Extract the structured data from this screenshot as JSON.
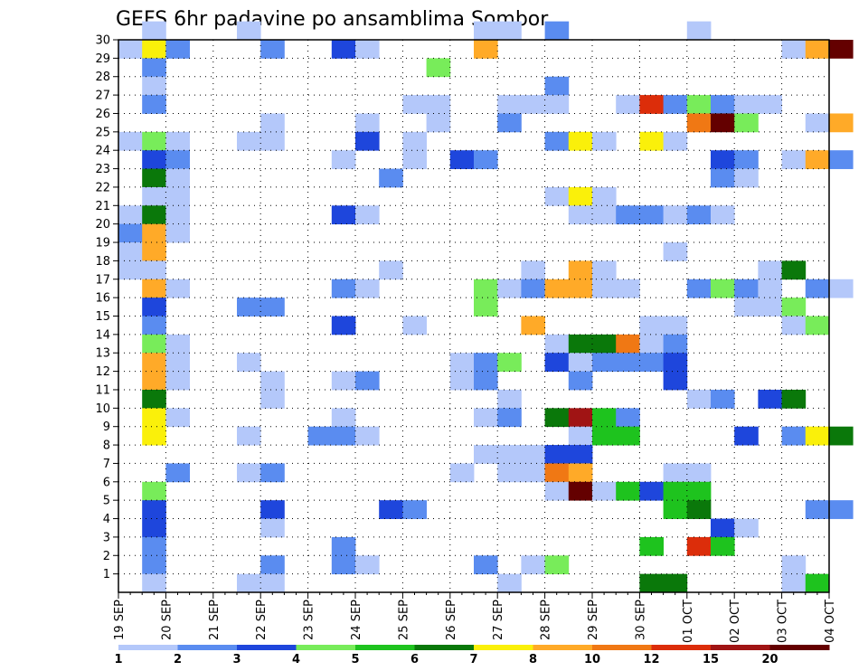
{
  "chart_data": {
    "type": "heatmap",
    "title": "GEFS 6hr padavine po ansamblima Sombor",
    "xlabel": "",
    "ylabel": "",
    "x_tick_labels": [
      "19 SEP",
      "20 SEP",
      "21 SEP",
      "22 SEP",
      "23 SEP",
      "24 SEP",
      "25 SEP",
      "26 SEP",
      "27 SEP",
      "28 SEP",
      "29 SEP",
      "30 SEP",
      "01 OCT",
      "02 OCT",
      "03 OCT",
      "04 OCT"
    ],
    "xlim": [
      0,
      60
    ],
    "x_unit": "6-hour step",
    "y_tick_labels": [
      "1",
      "2",
      "3",
      "4",
      "5",
      "6",
      "7",
      "8",
      "9",
      "10",
      "11",
      "12",
      "13",
      "14",
      "15",
      "16",
      "17",
      "18",
      "19",
      "20",
      "21",
      "22",
      "23",
      "24",
      "25",
      "26",
      "27",
      "28",
      "29",
      "30"
    ],
    "ylim": [
      0,
      30
    ],
    "grid": true,
    "colorbar": {
      "labels": [
        "1",
        "2",
        "3",
        "4",
        "5",
        "6",
        "7",
        "8",
        "10",
        "12",
        "15",
        "20"
      ],
      "colors": [
        "#b4c8fa",
        "#5a8cf0",
        "#1e46dc",
        "#78ec5a",
        "#1ec31e",
        "#0a780a",
        "#faf00a",
        "#ffaa28",
        "#f07814",
        "#dc2d0a",
        "#a01414",
        "#640000"
      ]
    },
    "cells": [
      [
        1,
        30,
        1
      ],
      [
        5,
        30,
        1
      ],
      [
        15,
        30,
        1
      ],
      [
        16,
        30,
        1
      ],
      [
        18,
        30,
        2
      ],
      [
        24,
        30,
        1
      ],
      [
        0,
        29,
        1
      ],
      [
        1,
        29,
        7
      ],
      [
        2,
        29,
        2
      ],
      [
        6,
        29,
        2
      ],
      [
        9,
        29,
        3
      ],
      [
        10,
        29,
        1
      ],
      [
        15,
        29,
        8
      ],
      [
        28,
        29,
        1
      ],
      [
        29,
        29,
        8
      ],
      [
        30,
        29,
        12
      ],
      [
        1,
        28,
        2
      ],
      [
        13,
        28,
        4
      ],
      [
        1,
        27,
        1
      ],
      [
        18,
        27,
        2
      ],
      [
        1,
        26,
        2
      ],
      [
        13,
        26,
        1
      ],
      [
        16,
        26,
        1
      ],
      [
        17,
        26,
        1
      ],
      [
        18,
        26,
        1
      ],
      [
        21,
        26,
        1
      ],
      [
        22,
        26,
        10
      ],
      [
        23,
        26,
        2
      ],
      [
        24,
        26,
        4
      ],
      [
        25,
        26,
        2
      ],
      [
        27,
        26,
        1
      ],
      [
        26,
        26,
        1
      ],
      [
        12,
        26,
        1
      ],
      [
        6,
        25,
        1
      ],
      [
        10,
        25,
        1
      ],
      [
        13,
        25,
        1
      ],
      [
        16,
        25,
        2
      ],
      [
        24,
        25,
        9
      ],
      [
        25,
        25,
        12
      ],
      [
        26,
        25,
        4
      ],
      [
        29,
        25,
        1
      ],
      [
        30,
        25,
        8
      ],
      [
        0,
        24,
        1
      ],
      [
        1,
        24,
        4
      ],
      [
        2,
        24,
        1
      ],
      [
        5,
        24,
        1
      ],
      [
        6,
        24,
        1
      ],
      [
        10,
        24,
        3
      ],
      [
        12,
        24,
        1
      ],
      [
        18,
        24,
        2
      ],
      [
        19,
        24,
        7
      ],
      [
        20,
        24,
        1
      ],
      [
        22,
        24,
        7
      ],
      [
        23,
        24,
        1
      ],
      [
        1,
        23,
        3
      ],
      [
        2,
        23,
        2
      ],
      [
        9,
        23,
        1
      ],
      [
        12,
        23,
        1
      ],
      [
        14,
        23,
        3
      ],
      [
        15,
        23,
        2
      ],
      [
        25,
        23,
        3
      ],
      [
        26,
        23,
        2
      ],
      [
        28,
        23,
        1
      ],
      [
        29,
        23,
        8
      ],
      [
        30,
        23,
        2
      ],
      [
        1,
        22,
        6
      ],
      [
        2,
        22,
        1
      ],
      [
        11,
        22,
        2
      ],
      [
        25,
        22,
        2
      ],
      [
        26,
        22,
        1
      ],
      [
        1,
        21,
        1
      ],
      [
        2,
        21,
        1
      ],
      [
        18,
        21,
        1
      ],
      [
        19,
        21,
        7
      ],
      [
        20,
        21,
        1
      ],
      [
        0,
        20,
        1
      ],
      [
        1,
        20,
        6
      ],
      [
        2,
        20,
        1
      ],
      [
        9,
        20,
        3
      ],
      [
        10,
        20,
        1
      ],
      [
        19,
        20,
        1
      ],
      [
        20,
        20,
        1
      ],
      [
        21,
        20,
        2
      ],
      [
        22,
        20,
        2
      ],
      [
        23,
        20,
        1
      ],
      [
        24,
        20,
        2
      ],
      [
        25,
        20,
        1
      ],
      [
        0,
        19,
        2
      ],
      [
        1,
        19,
        8
      ],
      [
        2,
        19,
        1
      ],
      [
        0,
        18,
        1
      ],
      [
        1,
        18,
        8
      ],
      [
        23,
        18,
        1
      ],
      [
        0,
        17,
        1
      ],
      [
        1,
        17,
        1
      ],
      [
        11,
        17,
        1
      ],
      [
        17,
        17,
        1
      ],
      [
        19,
        17,
        8
      ],
      [
        20,
        17,
        1
      ],
      [
        27,
        17,
        1
      ],
      [
        28,
        17,
        6
      ],
      [
        1,
        16,
        8
      ],
      [
        2,
        16,
        1
      ],
      [
        9,
        16,
        2
      ],
      [
        10,
        16,
        1
      ],
      [
        15,
        16,
        4
      ],
      [
        16,
        16,
        1
      ],
      [
        17,
        16,
        2
      ],
      [
        18,
        16,
        8
      ],
      [
        19,
        16,
        8
      ],
      [
        20,
        16,
        1
      ],
      [
        21,
        16,
        1
      ],
      [
        24,
        16,
        2
      ],
      [
        25,
        16,
        4
      ],
      [
        26,
        16,
        2
      ],
      [
        27,
        16,
        1
      ],
      [
        29,
        16,
        2
      ],
      [
        30,
        16,
        1
      ],
      [
        1,
        15,
        3
      ],
      [
        5,
        15,
        2
      ],
      [
        6,
        15,
        2
      ],
      [
        15,
        15,
        4
      ],
      [
        26,
        15,
        1
      ],
      [
        27,
        15,
        1
      ],
      [
        28,
        15,
        4
      ],
      [
        1,
        14,
        2
      ],
      [
        9,
        14,
        3
      ],
      [
        12,
        14,
        1
      ],
      [
        17,
        14,
        8
      ],
      [
        22,
        14,
        1
      ],
      [
        23,
        14,
        1
      ],
      [
        28,
        14,
        1
      ],
      [
        29,
        14,
        4
      ],
      [
        1,
        13,
        4
      ],
      [
        2,
        13,
        1
      ],
      [
        18,
        13,
        1
      ],
      [
        19,
        13,
        6
      ],
      [
        20,
        13,
        6
      ],
      [
        21,
        13,
        9
      ],
      [
        22,
        13,
        1
      ],
      [
        23,
        13,
        2
      ],
      [
        1,
        12,
        8
      ],
      [
        2,
        12,
        1
      ],
      [
        5,
        12,
        1
      ],
      [
        14,
        12,
        1
      ],
      [
        15,
        12,
        2
      ],
      [
        16,
        12,
        4
      ],
      [
        18,
        12,
        3
      ],
      [
        19,
        12,
        1
      ],
      [
        20,
        12,
        2
      ],
      [
        21,
        12,
        2
      ],
      [
        22,
        12,
        2
      ],
      [
        23,
        12,
        3
      ],
      [
        1,
        11,
        8
      ],
      [
        2,
        11,
        1
      ],
      [
        6,
        11,
        1
      ],
      [
        9,
        11,
        1
      ],
      [
        10,
        11,
        2
      ],
      [
        14,
        11,
        1
      ],
      [
        15,
        11,
        2
      ],
      [
        19,
        11,
        2
      ],
      [
        23,
        11,
        3
      ],
      [
        1,
        10,
        6
      ],
      [
        6,
        10,
        1
      ],
      [
        16,
        10,
        1
      ],
      [
        24,
        10,
        1
      ],
      [
        25,
        10,
        2
      ],
      [
        27,
        10,
        3
      ],
      [
        28,
        10,
        6
      ],
      [
        1,
        9,
        7
      ],
      [
        2,
        9,
        1
      ],
      [
        9,
        9,
        1
      ],
      [
        15,
        9,
        1
      ],
      [
        16,
        9,
        2
      ],
      [
        18,
        9,
        6
      ],
      [
        19,
        9,
        11
      ],
      [
        20,
        9,
        5
      ],
      [
        21,
        9,
        2
      ],
      [
        1,
        8,
        7
      ],
      [
        5,
        8,
        1
      ],
      [
        8,
        8,
        2
      ],
      [
        9,
        8,
        2
      ],
      [
        10,
        8,
        1
      ],
      [
        19,
        8,
        1
      ],
      [
        20,
        8,
        5
      ],
      [
        21,
        8,
        5
      ],
      [
        26,
        8,
        3
      ],
      [
        28,
        8,
        2
      ],
      [
        29,
        8,
        7
      ],
      [
        30,
        8,
        6
      ],
      [
        15,
        7,
        1
      ],
      [
        16,
        7,
        1
      ],
      [
        17,
        7,
        1
      ],
      [
        18,
        7,
        3
      ],
      [
        19,
        7,
        3
      ],
      [
        2,
        6,
        2
      ],
      [
        5,
        6,
        1
      ],
      [
        6,
        6,
        2
      ],
      [
        14,
        6,
        1
      ],
      [
        16,
        6,
        1
      ],
      [
        17,
        6,
        1
      ],
      [
        18,
        6,
        9
      ],
      [
        19,
        6,
        8
      ],
      [
        23,
        6,
        1
      ],
      [
        24,
        6,
        1
      ],
      [
        1,
        5,
        4
      ],
      [
        18,
        5,
        1
      ],
      [
        19,
        5,
        12
      ],
      [
        20,
        5,
        1
      ],
      [
        21,
        5,
        5
      ],
      [
        22,
        5,
        3
      ],
      [
        23,
        5,
        5
      ],
      [
        24,
        5,
        5
      ],
      [
        1,
        4,
        3
      ],
      [
        6,
        4,
        3
      ],
      [
        11,
        4,
        3
      ],
      [
        12,
        4,
        2
      ],
      [
        23,
        4,
        5
      ],
      [
        24,
        4,
        6
      ],
      [
        29,
        4,
        2
      ],
      [
        30,
        4,
        2
      ],
      [
        1,
        3,
        3
      ],
      [
        6,
        3,
        1
      ],
      [
        25,
        3,
        3
      ],
      [
        26,
        3,
        1
      ],
      [
        1,
        2,
        2
      ],
      [
        9,
        2,
        2
      ],
      [
        22,
        2,
        5
      ],
      [
        24,
        2,
        10
      ],
      [
        25,
        2,
        5
      ],
      [
        1,
        1,
        2
      ],
      [
        6,
        1,
        2
      ],
      [
        9,
        1,
        2
      ],
      [
        10,
        1,
        1
      ],
      [
        15,
        1,
        2
      ],
      [
        17,
        1,
        1
      ],
      [
        18,
        1,
        4
      ],
      [
        28,
        1,
        1
      ],
      [
        1,
        0,
        1
      ],
      [
        5,
        0,
        1
      ],
      [
        6,
        0,
        1
      ],
      [
        16,
        0,
        1
      ],
      [
        22,
        0,
        6
      ],
      [
        23,
        0,
        6
      ],
      [
        28,
        0,
        1
      ],
      [
        29,
        0,
        5
      ]
    ]
  }
}
